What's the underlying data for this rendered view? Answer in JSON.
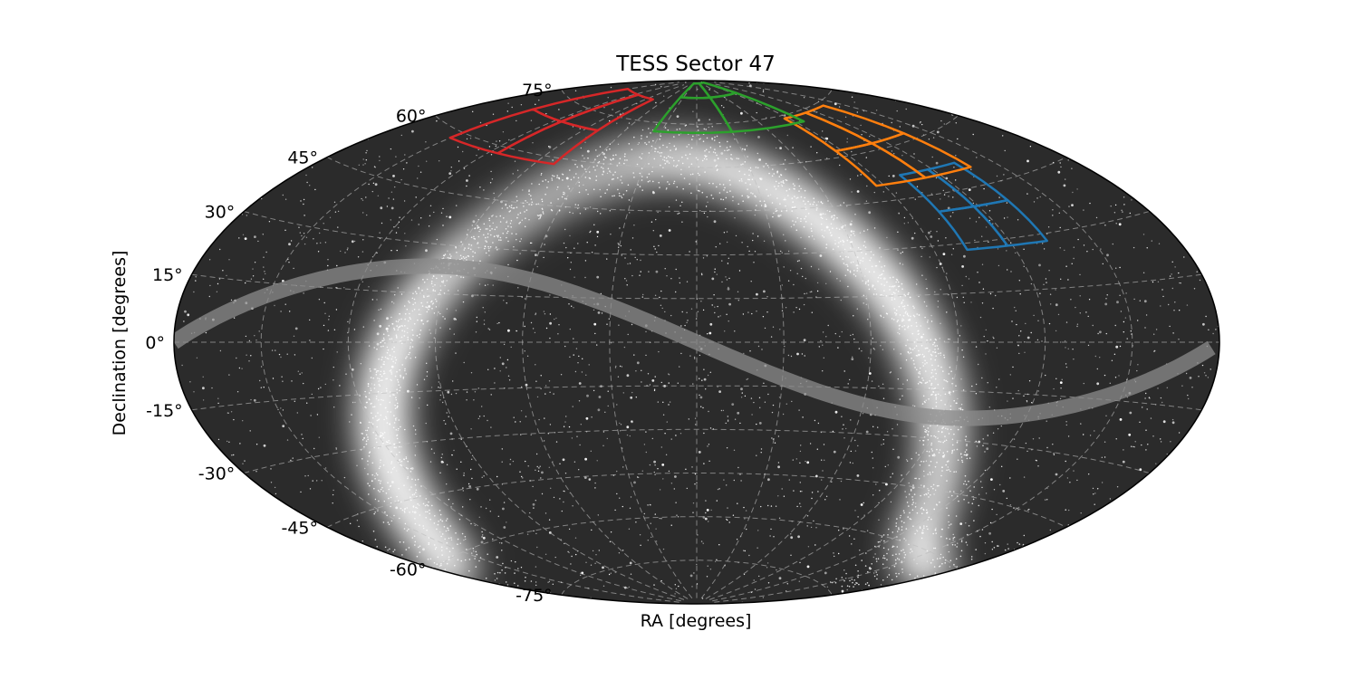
{
  "chart_data": {
    "type": "sky-map",
    "projection": "aitoff",
    "title": "TESS Sector 47",
    "xlabel": "RA [degrees]",
    "ylabel": "Declination [degrees]",
    "dec_ticks": [
      {
        "value": 75,
        "label": "75°"
      },
      {
        "value": 60,
        "label": "60°"
      },
      {
        "value": 45,
        "label": "45°"
      },
      {
        "value": 30,
        "label": "30°"
      },
      {
        "value": 15,
        "label": "15°"
      },
      {
        "value": 0,
        "label": "0°"
      },
      {
        "value": -15,
        "label": "-15°"
      },
      {
        "value": -30,
        "label": "-30°"
      },
      {
        "value": -45,
        "label": "-45°"
      },
      {
        "value": -60,
        "label": "-60°"
      },
      {
        "value": -75,
        "label": "-75°"
      }
    ],
    "grid": true,
    "cameras": [
      {
        "camera": 1,
        "color": "#1f77b4",
        "center_lon": 118,
        "center_lat": 40
      },
      {
        "camera": 2,
        "color": "#ff7f0e",
        "center_lon": 112,
        "center_lat": 62
      },
      {
        "camera": 3,
        "color": "#2ca02c",
        "center_lon": 30,
        "center_lat": 84
      },
      {
        "camera": 4,
        "color": "#d62728",
        "center_lon": -115,
        "center_lat": 70
      }
    ],
    "ecliptic_color": "#8c8c8c",
    "background_color": "#2b2b2b"
  }
}
